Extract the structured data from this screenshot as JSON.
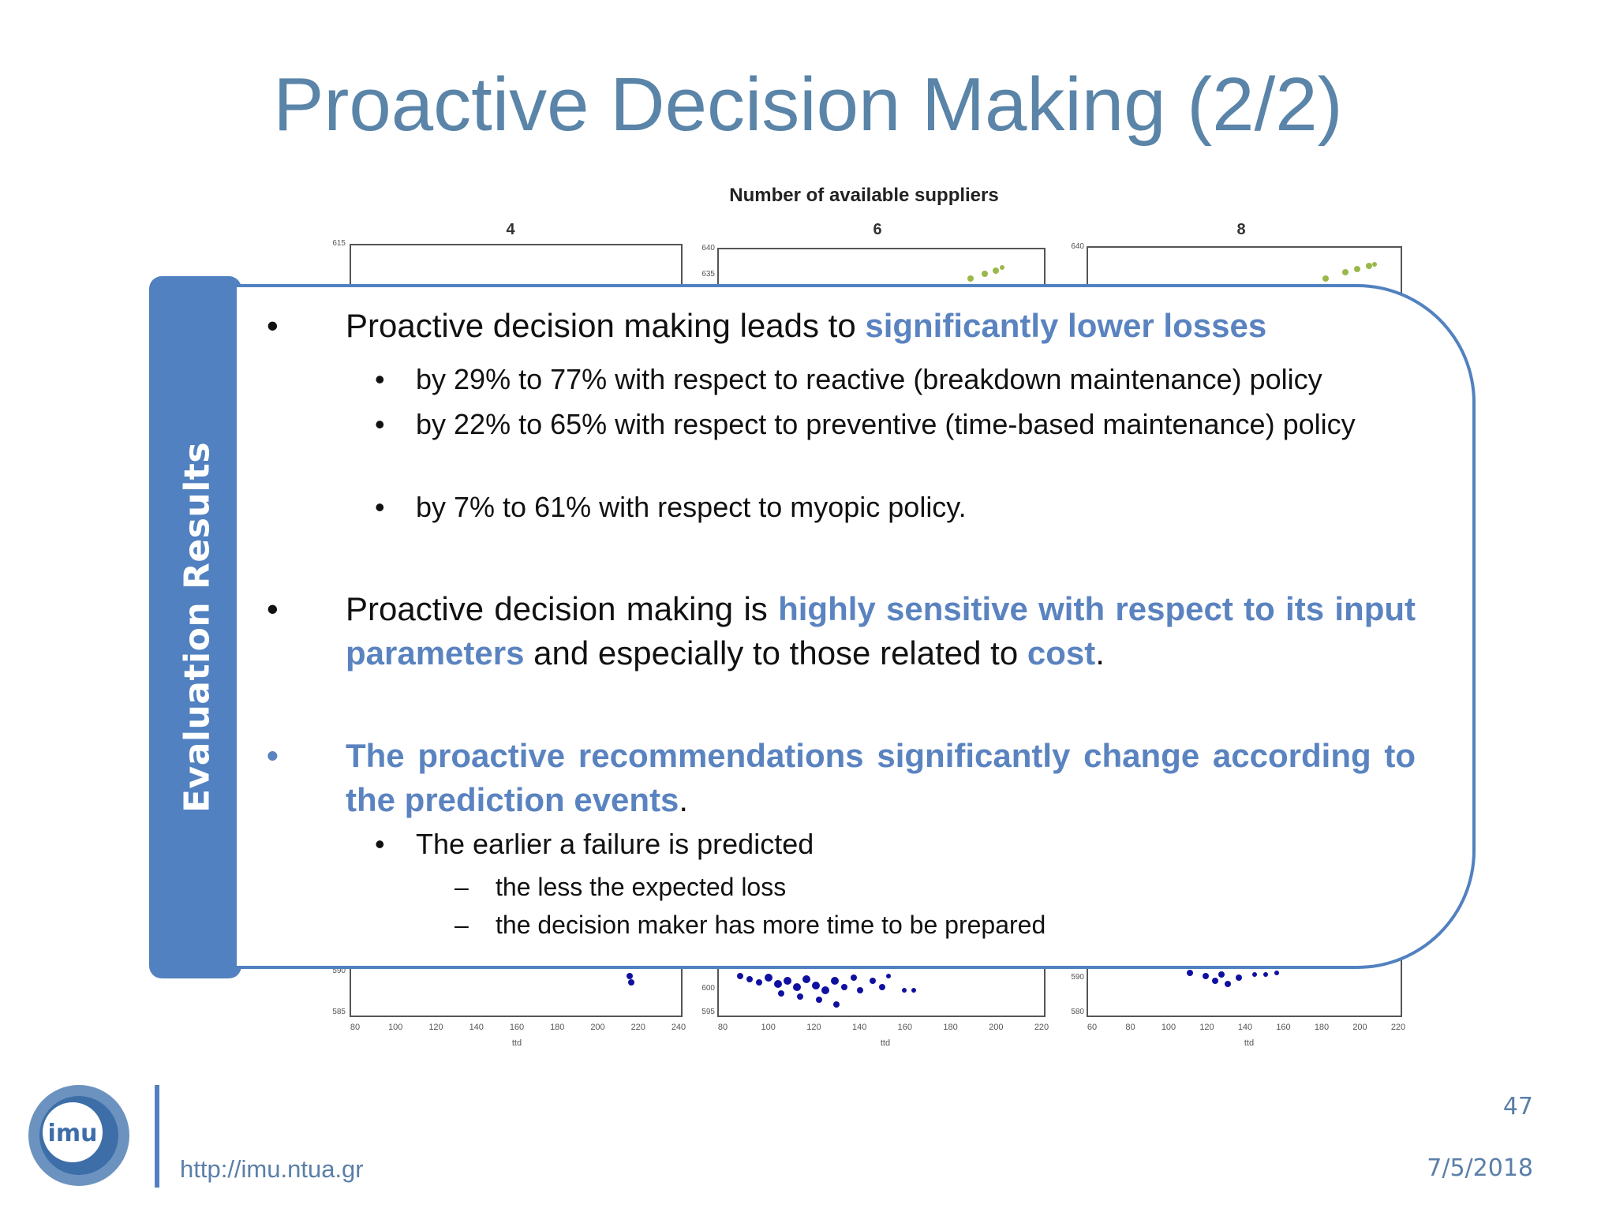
{
  "slide": {
    "title": "Proactive Decision Making (2/2)",
    "side_label": "Evaluation Results",
    "page_number": "47",
    "url": "http://imu.ntua.gr",
    "date": "7/5/2018",
    "logo_text": "imu"
  },
  "figure": {
    "heading": "Number of available suppliers",
    "panels": [
      {
        "label": "4",
        "y_top": "615",
        "y_bottom_labels": [
          "590",
          "585"
        ],
        "x_ticks": [
          "80",
          "100",
          "120",
          "140",
          "160",
          "180",
          "200",
          "220",
          "240"
        ],
        "x_label": "ttd"
      },
      {
        "label": "6",
        "y_top": "640",
        "y_second": "635",
        "y_bottom_labels": [
          "600",
          "595"
        ],
        "x_ticks": [
          "80",
          "100",
          "120",
          "140",
          "160",
          "180",
          "200",
          "220"
        ],
        "x_label": "ttd"
      },
      {
        "label": "8",
        "y_top": "640",
        "y_bottom_labels": [
          "590",
          "580"
        ],
        "x_ticks": [
          "60",
          "80",
          "100",
          "120",
          "140",
          "160",
          "180",
          "200",
          "220"
        ],
        "x_label": "ttd"
      }
    ]
  },
  "bullets": {
    "b1_pre": "Proactive decision making leads to ",
    "b1_hl": "significantly lower losses",
    "b1_sub1": "by 29% to 77% with respect to reactive (breakdown maintenance) policy",
    "b1_sub2": "by 22% to 65% with respect to preventive (time-based maintenance) policy",
    "b1_sub3": "by 7% to 61% with respect to myopic policy.",
    "b2_pre": "Proactive decision making is ",
    "b2_hl": "highly sensitive with respect to its input parameters",
    "b2_mid": " and especially to those related to ",
    "b2_hl2": "cost",
    "b2_end": ".",
    "b3_hl": "The proactive recommendations significantly change according to the prediction events",
    "b3_end": ".",
    "b3_sub1": "The earlier a failure is predicted",
    "b3_sub1_a": "the less the expected loss",
    "b3_sub1_b": "the decision maker has more time to be prepared",
    "bullet_char": "•",
    "dash_char": "–"
  },
  "colors": {
    "accent": "#5181c0",
    "highlight": "#5a83c0",
    "title": "#5a84a8",
    "scatter_blue": "#1010a0",
    "scatter_green": "#9ab84a"
  }
}
